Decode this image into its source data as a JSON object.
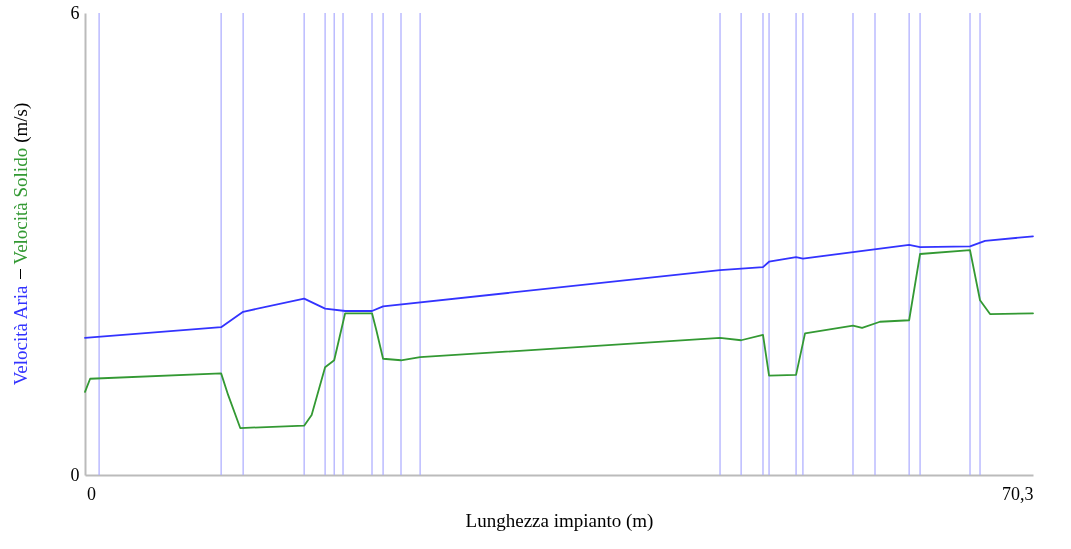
{
  "chart_data": {
    "type": "line",
    "xlabel": "Lunghezza impianto (m)",
    "ylabel": "(m/s)",
    "xlim": [
      -0.45,
      71.49
    ],
    "xticks": [
      0,
      {
        "value": 70.3,
        "label": "70,3"
      }
    ],
    "ylim": [
      0,
      6
    ],
    "yticks": [
      0,
      6
    ],
    "grid": false,
    "legend": false,
    "marker": "none",
    "line_style": "solid",
    "series": [
      {
        "name": "Velocità Aria",
        "color": "#3333ff",
        "x": [
          -0.45,
          9.88,
          11.55,
          16.18,
          17.77,
          19.29,
          21.33,
          22.17,
          47.74,
          51.0,
          51.46,
          53.51,
          54.03,
          62.09,
          62.92,
          66.71,
          67.85,
          71.49
        ],
        "values": [
          1.78,
          1.92,
          2.12,
          2.29,
          2.16,
          2.13,
          2.13,
          2.19,
          2.66,
          2.7,
          2.77,
          2.83,
          2.81,
          2.99,
          2.96,
          2.97,
          3.04,
          3.1
        ]
      },
      {
        "name": "Velocità Solido",
        "color": "#339933",
        "x": [
          -0.45,
          -0.06,
          9.88,
          10.41,
          11.33,
          16.18,
          16.75,
          17.77,
          18.46,
          19.29,
          21.33,
          21.66,
          22.17,
          23.53,
          24.98,
          47.74,
          49.34,
          51.0,
          51.46,
          53.51,
          54.19,
          57.83,
          58.52,
          59.88,
          62.09,
          62.92,
          66.71,
          67.47,
          68.23,
          71.49
        ],
        "values": [
          1.08,
          1.25,
          1.32,
          1.04,
          0.61,
          0.64,
          0.78,
          1.4,
          1.49,
          2.1,
          2.1,
          1.88,
          1.51,
          1.49,
          1.53,
          1.78,
          1.75,
          1.82,
          1.29,
          1.3,
          1.84,
          1.94,
          1.91,
          1.99,
          2.01,
          2.87,
          2.92,
          2.27,
          2.09,
          2.1
        ]
      }
    ],
    "ref_lines": [
      {
        "axis": "x",
        "value": 0.62,
        "color": "#aaaaff"
      },
      {
        "axis": "x",
        "value": 9.88,
        "color": "#aaaaff"
      },
      {
        "axis": "x",
        "value": 11.55,
        "color": "#aaaaff"
      },
      {
        "axis": "x",
        "value": 16.18,
        "color": "#aaaaff"
      },
      {
        "axis": "x",
        "value": 17.77,
        "color": "#aaaaff"
      },
      {
        "axis": "x",
        "value": 18.46,
        "color": "#aaaaff"
      },
      {
        "axis": "x",
        "value": 19.13,
        "color": "#aaaaff"
      },
      {
        "axis": "x",
        "value": 21.33,
        "color": "#aaaaff"
      },
      {
        "axis": "x",
        "value": 22.17,
        "color": "#aaaaff"
      },
      {
        "axis": "x",
        "value": 23.53,
        "color": "#aaaaff"
      },
      {
        "axis": "x",
        "value": 24.98,
        "color": "#aaaaff"
      },
      {
        "axis": "x",
        "value": 47.74,
        "color": "#aaaaff"
      },
      {
        "axis": "x",
        "value": 49.34,
        "color": "#aaaaff"
      },
      {
        "axis": "x",
        "value": 51.0,
        "color": "#aaaaff"
      },
      {
        "axis": "x",
        "value": 51.46,
        "color": "#aaaaff"
      },
      {
        "axis": "x",
        "value": 53.51,
        "color": "#aaaaff"
      },
      {
        "axis": "x",
        "value": 54.03,
        "color": "#aaaaff"
      },
      {
        "axis": "x",
        "value": 57.83,
        "color": "#aaaaff"
      },
      {
        "axis": "x",
        "value": 59.5,
        "color": "#aaaaff"
      },
      {
        "axis": "x",
        "value": 62.09,
        "color": "#aaaaff"
      },
      {
        "axis": "x",
        "value": 62.92,
        "color": "#aaaaff"
      },
      {
        "axis": "x",
        "value": 66.71,
        "color": "#aaaaff"
      },
      {
        "axis": "x",
        "value": 67.47,
        "color": "#aaaaff"
      }
    ]
  }
}
